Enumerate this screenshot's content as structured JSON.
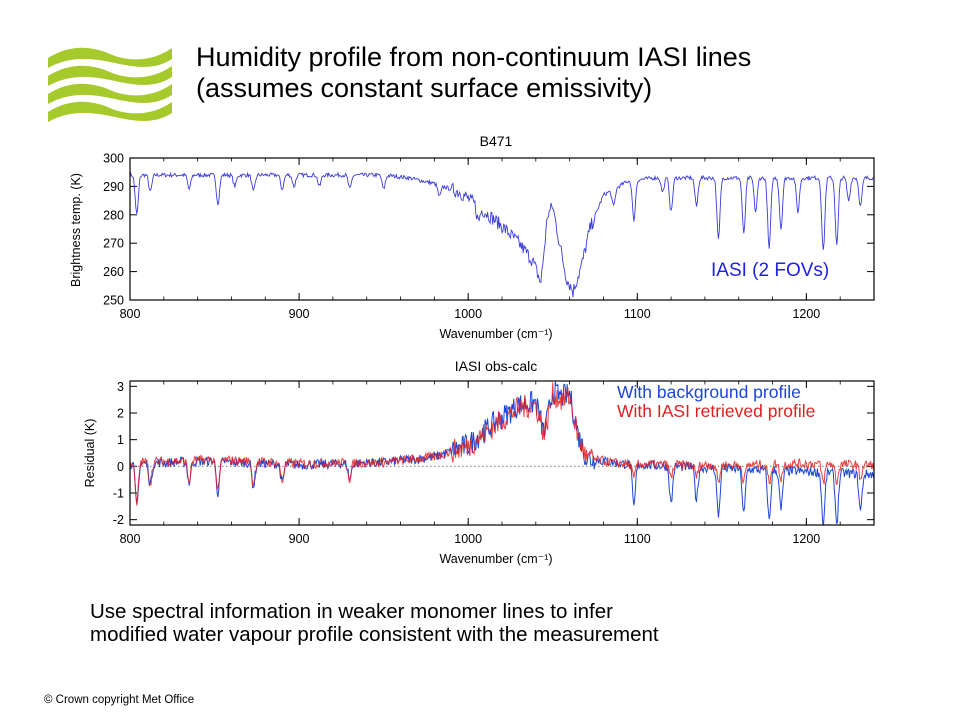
{
  "slide": {
    "title_line1": "Humidity profile from non-continuum IASI lines",
    "title_line2": "(assumes constant surface emissivity)",
    "caption_line1": "Use spectral information in weaker monomer lines to infer",
    "caption_line2": "modified water vapour profile consistent with the measurement",
    "copyright": "© Crown copyright   Met Office",
    "logo_icon": "met-office-wave-logo-icon",
    "logo_color": "#a6c92b"
  },
  "chart_data": [
    {
      "type": "line",
      "title": "B471",
      "xlabel": "Wavenumber (cm⁻¹)",
      "ylabel": "Brightness temp. (K)",
      "xlim": [
        800,
        1240
      ],
      "ylim": [
        250,
        300
      ],
      "xticks": [
        800,
        900,
        1000,
        1100,
        1200
      ],
      "yticks": [
        250,
        260,
        270,
        280,
        290,
        300
      ],
      "grid": false,
      "annotation": "IASI (2 FOVs)",
      "annotation_color": "#2020e8",
      "series": [
        {
          "name": "IASI (2 FOVs)",
          "color": "#3b3bdc",
          "x": [
            800,
            840,
            880,
            920,
            950,
            965,
            980,
            995,
            1010,
            1020,
            1030,
            1038,
            1043,
            1047,
            1050,
            1054,
            1058,
            1062,
            1067,
            1072,
            1080,
            1095,
            1110,
            1140,
            1180,
            1210,
            1240
          ],
          "values": [
            294,
            294,
            294,
            294,
            294,
            293,
            291,
            288,
            281,
            276,
            270,
            264,
            256,
            280,
            283,
            270,
            258,
            253,
            262,
            275,
            287,
            292,
            293,
            293,
            293,
            293,
            293
          ]
        }
      ],
      "absorption_dips": [
        {
          "x": 804,
          "depth": 14
        },
        {
          "x": 812,
          "depth": 6
        },
        {
          "x": 835,
          "depth": 5
        },
        {
          "x": 852,
          "depth": 10
        },
        {
          "x": 862,
          "depth": 4
        },
        {
          "x": 873,
          "depth": 6
        },
        {
          "x": 890,
          "depth": 5
        },
        {
          "x": 897,
          "depth": 4
        },
        {
          "x": 912,
          "depth": 4
        },
        {
          "x": 930,
          "depth": 5
        },
        {
          "x": 950,
          "depth": 5
        },
        {
          "x": 983,
          "depth": 4
        },
        {
          "x": 1006,
          "depth": 5
        },
        {
          "x": 1086,
          "depth": 6
        },
        {
          "x": 1098,
          "depth": 14
        },
        {
          "x": 1115,
          "depth": 5
        },
        {
          "x": 1120,
          "depth": 12
        },
        {
          "x": 1135,
          "depth": 10
        },
        {
          "x": 1148,
          "depth": 22
        },
        {
          "x": 1163,
          "depth": 20
        },
        {
          "x": 1170,
          "depth": 12
        },
        {
          "x": 1178,
          "depth": 25
        },
        {
          "x": 1185,
          "depth": 18
        },
        {
          "x": 1195,
          "depth": 12
        },
        {
          "x": 1210,
          "depth": 26
        },
        {
          "x": 1218,
          "depth": 24
        },
        {
          "x": 1225,
          "depth": 8
        },
        {
          "x": 1232,
          "depth": 10
        }
      ]
    },
    {
      "type": "line",
      "title": "IASI obs-calc",
      "xlabel": "Wavenumber (cm⁻¹)",
      "ylabel": "Residual (K)",
      "xlim": [
        800,
        1240
      ],
      "ylim": [
        -2.2,
        3.2
      ],
      "xticks": [
        800,
        900,
        1000,
        1100,
        1200
      ],
      "yticks": [
        -2,
        -1,
        0,
        1,
        2,
        3
      ],
      "grid": false,
      "zero_line": "dotted",
      "legend": "top-right",
      "series": [
        {
          "name": "With background profile",
          "color": "#1c46d8",
          "x": [
            800,
            850,
            900,
            950,
            980,
            1000,
            1015,
            1030,
            1040,
            1045,
            1050,
            1055,
            1060,
            1065,
            1070,
            1090,
            1120,
            1160,
            1200,
            1240
          ],
          "values": [
            0.1,
            0.2,
            0.05,
            0.15,
            0.35,
            0.8,
            1.6,
            2.3,
            2.4,
            1.2,
            2.8,
            2.6,
            2.7,
            1.2,
            0.3,
            0.1,
            0.0,
            -0.1,
            -0.2,
            -0.3
          ]
        },
        {
          "name": "With IASI retrieved profile",
          "color": "#e02020",
          "x": [
            800,
            850,
            900,
            950,
            980,
            1000,
            1015,
            1030,
            1040,
            1045,
            1050,
            1055,
            1060,
            1065,
            1070,
            1090,
            1120,
            1160,
            1200,
            1240
          ],
          "values": [
            0.15,
            0.25,
            0.1,
            0.15,
            0.35,
            0.75,
            1.5,
            2.2,
            2.3,
            1.2,
            2.7,
            2.5,
            2.6,
            1.1,
            0.3,
            0.1,
            0.05,
            0.05,
            0.1,
            0.05
          ]
        }
      ],
      "absorption_dips": [
        {
          "x": 804,
          "depth": 1.6
        },
        {
          "x": 812,
          "depth": 0.8
        },
        {
          "x": 835,
          "depth": 0.8
        },
        {
          "x": 852,
          "depth": 1.2
        },
        {
          "x": 873,
          "depth": 0.9
        },
        {
          "x": 890,
          "depth": 0.7
        },
        {
          "x": 930,
          "depth": 0.6
        },
        {
          "x": 1098,
          "depth": 1.6
        },
        {
          "x": 1120,
          "depth": 1.4
        },
        {
          "x": 1135,
          "depth": 1.2
        },
        {
          "x": 1148,
          "depth": 1.8
        },
        {
          "x": 1163,
          "depth": 1.7
        },
        {
          "x": 1178,
          "depth": 1.9
        },
        {
          "x": 1185,
          "depth": 1.5
        },
        {
          "x": 1210,
          "depth": 2.0
        },
        {
          "x": 1218,
          "depth": 1.9
        },
        {
          "x": 1232,
          "depth": 1.4
        }
      ]
    }
  ]
}
